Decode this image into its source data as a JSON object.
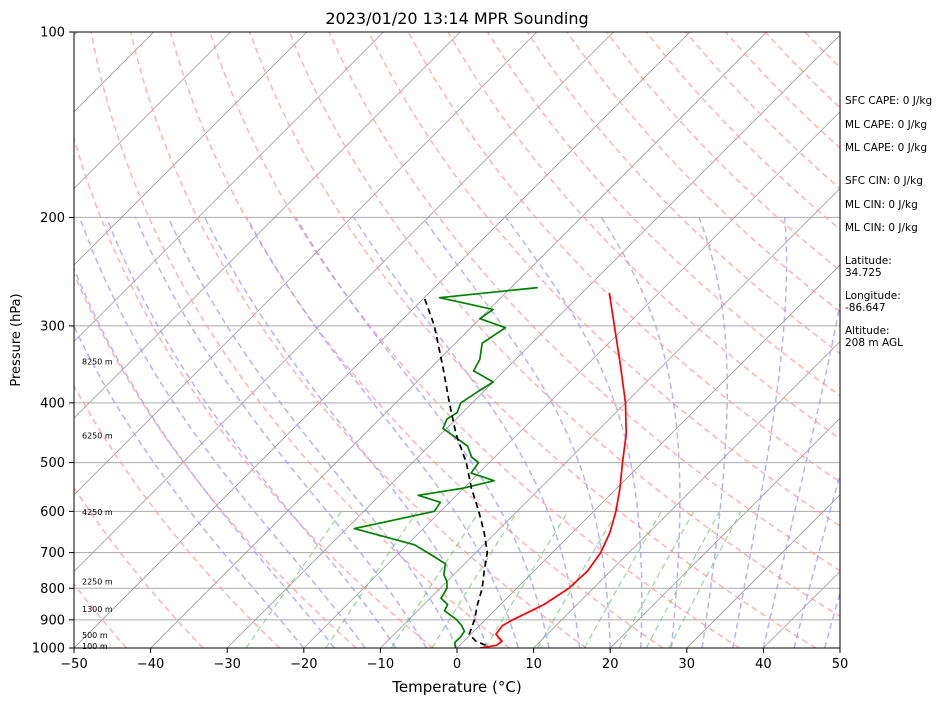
{
  "chart_data": {
    "type": "line",
    "title": "2023/01/20 13:14 MPR Sounding",
    "xlabel": "Temperature (°C)",
    "ylabel": "Pressure (hPa)",
    "xlim": [
      -50,
      50
    ],
    "ylim": [
      1000,
      100
    ],
    "y_scale": "log",
    "x_ticks": [
      -50,
      -40,
      -30,
      -20,
      -10,
      0,
      10,
      20,
      30,
      40,
      50
    ],
    "x_tick_labels": [
      "−50",
      "−40",
      "−30",
      "−20",
      "−10",
      "0",
      "10",
      "20",
      "30",
      "40",
      "50"
    ],
    "y_ticks": [
      1000,
      900,
      800,
      700,
      600,
      500,
      400,
      300,
      200,
      100
    ],
    "y_tick_labels": [
      "1000",
      "900",
      "800",
      "700",
      "600",
      "500",
      "400",
      "300",
      "200",
      "100"
    ],
    "isobar_grid": [
      100,
      200,
      300,
      400,
      500,
      600,
      700,
      800,
      900,
      1000
    ],
    "height_labels": [
      {
        "p": 992,
        "text": "100 m"
      },
      {
        "p": 953,
        "text": "500 m"
      },
      {
        "p": 865,
        "text": "1300 m"
      },
      {
        "p": 780,
        "text": "2250 m"
      },
      {
        "p": 602,
        "text": "4250 m"
      },
      {
        "p": 452,
        "text": "6250 m"
      },
      {
        "p": 343,
        "text": "8250 m"
      }
    ],
    "series": [
      {
        "color": "#ff0000",
        "points": [
          [
            1000,
            3.0
          ],
          [
            990,
            4.8
          ],
          [
            975,
            5.0
          ],
          [
            950,
            3.3
          ],
          [
            920,
            3.0
          ],
          [
            900,
            3.6
          ],
          [
            850,
            5.7
          ],
          [
            800,
            6.8
          ],
          [
            750,
            7.0
          ],
          [
            700,
            6.3
          ],
          [
            650,
            4.9
          ],
          [
            600,
            2.9
          ],
          [
            550,
            0.4
          ],
          [
            500,
            -2.6
          ],
          [
            450,
            -5.8
          ],
          [
            400,
            -10.0
          ],
          [
            350,
            -15.3
          ],
          [
            300,
            -21.5
          ],
          [
            265,
            -26.5
          ]
        ]
      },
      {
        "color": "#008000",
        "points": [
          [
            1000,
            -0.2
          ],
          [
            980,
            -1.0
          ],
          [
            960,
            -1.0
          ],
          [
            940,
            -1.2
          ],
          [
            920,
            -2.3
          ],
          [
            900,
            -3.7
          ],
          [
            870,
            -6.5
          ],
          [
            850,
            -6.9
          ],
          [
            830,
            -8.6
          ],
          [
            800,
            -9.1
          ],
          [
            780,
            -10.0
          ],
          [
            760,
            -11.3
          ],
          [
            730,
            -12.5
          ],
          [
            710,
            -15.0
          ],
          [
            680,
            -19.0
          ],
          [
            640,
            -29.0
          ],
          [
            600,
            -20.8
          ],
          [
            580,
            -21.2
          ],
          [
            565,
            -25.0
          ],
          [
            550,
            -20.0
          ],
          [
            535,
            -17.0
          ],
          [
            520,
            -21.0
          ],
          [
            500,
            -21.4
          ],
          [
            490,
            -23.0
          ],
          [
            470,
            -25.0
          ],
          [
            440,
            -30.5
          ],
          [
            425,
            -31.2
          ],
          [
            415,
            -30.7
          ],
          [
            400,
            -31.5
          ],
          [
            385,
            -30.8
          ],
          [
            370,
            -30.0
          ],
          [
            355,
            -34.0
          ],
          [
            340,
            -34.7
          ],
          [
            320,
            -36.5
          ],
          [
            302,
            -35.5
          ],
          [
            292,
            -40.0
          ],
          [
            282,
            -39.5
          ],
          [
            270,
            -48.0
          ],
          [
            260,
            -36.5
          ]
        ]
      },
      {
        "color": "#000000",
        "dashed": true,
        "points": [
          [
            990,
            3.4
          ],
          [
            975,
            1.6
          ],
          [
            950,
            -0.2
          ],
          [
            900,
            -1.4
          ],
          [
            850,
            -3.0
          ],
          [
            800,
            -4.5
          ],
          [
            750,
            -6.5
          ],
          [
            700,
            -8.5
          ],
          [
            650,
            -11.5
          ],
          [
            600,
            -15.0
          ],
          [
            550,
            -19.0
          ],
          [
            500,
            -23.0
          ],
          [
            450,
            -28.0
          ],
          [
            400,
            -33.0
          ],
          [
            350,
            -38.5
          ],
          [
            300,
            -45.0
          ],
          [
            270,
            -50.0
          ]
        ]
      }
    ]
  },
  "info_panel": {
    "sfc_cape": "SFC CAPE: 0 J/kg",
    "ml_cape_1": "ML CAPE: 0 J/kg",
    "ml_cape_2": "ML CAPE: 0 J/kg",
    "sfc_cin": "SFC CIN: 0 J/kg",
    "ml_cin_1": "ML CIN: 0 J/kg",
    "ml_cin_2": "ML CIN: 0 J/kg",
    "latitude_label": "Latitude:",
    "latitude_value": "34.725",
    "longitude_label": "Longitude:",
    "longitude_value": "-86.647",
    "altitude_label": "Altitude:",
    "altitude_value": "208 m AGL"
  },
  "colors": {
    "isobar": "#aaaaaa",
    "isotherm": "#999999",
    "dry_adiabat": "#ff9999",
    "moist_adiabat": "#9999ff",
    "mixing_ratio": "#66bb66"
  }
}
